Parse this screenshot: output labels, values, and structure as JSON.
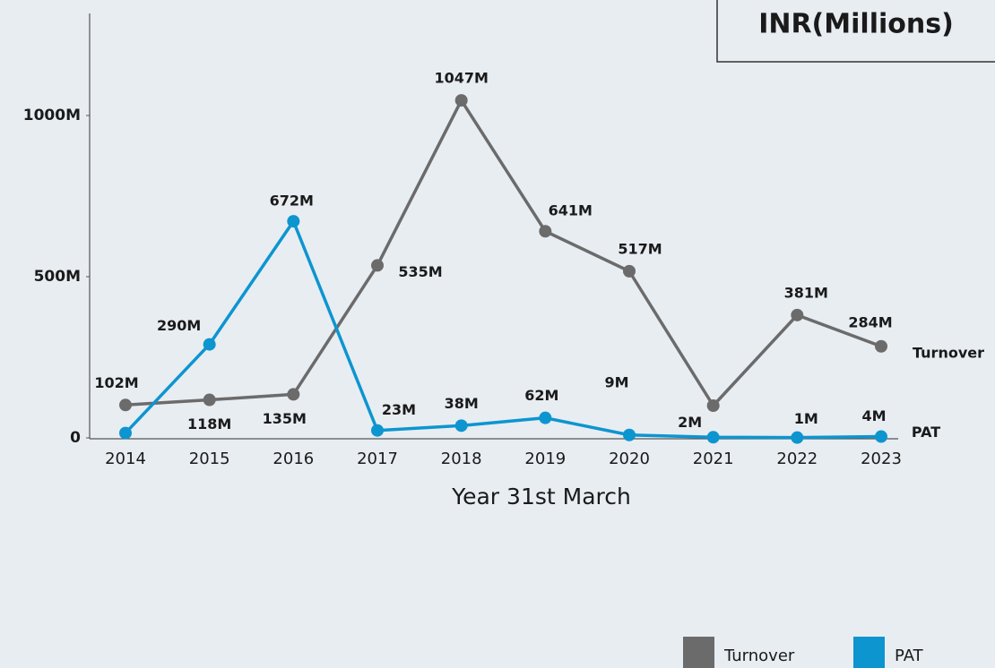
{
  "chart_data": {
    "type": "line",
    "title": "INR(Millions)",
    "x_label": "Year 31st March",
    "categories": [
      "2014",
      "2015",
      "2016",
      "2017",
      "2018",
      "2019",
      "2020",
      "2021",
      "2022",
      "2023"
    ],
    "series": [
      {
        "name": "Turnover",
        "color": "#6b6b6b",
        "values": [
          102,
          118,
          135,
          535,
          1047,
          641,
          517,
          100,
          381,
          284
        ],
        "value_labels": [
          "102M",
          "118M",
          "135M",
          "535M",
          "1047M",
          "641M",
          "517M",
          null,
          "381M",
          "284M"
        ]
      },
      {
        "name": "PAT",
        "color": "#0d95d0",
        "values": [
          15,
          290,
          672,
          23,
          38,
          62,
          9,
          2,
          1,
          4
        ],
        "value_labels": [
          null,
          "290M",
          "672M",
          "23M",
          "38M",
          "62M",
          "9M",
          "2M",
          "1M",
          "4M"
        ]
      }
    ],
    "ylim": [
      0,
      1300
    ],
    "yticks": [
      0,
      {
        "value": 500,
        "label": "500M"
      },
      {
        "value": 1000,
        "label": "1000M"
      }
    ],
    "legend": "bottom-right"
  }
}
